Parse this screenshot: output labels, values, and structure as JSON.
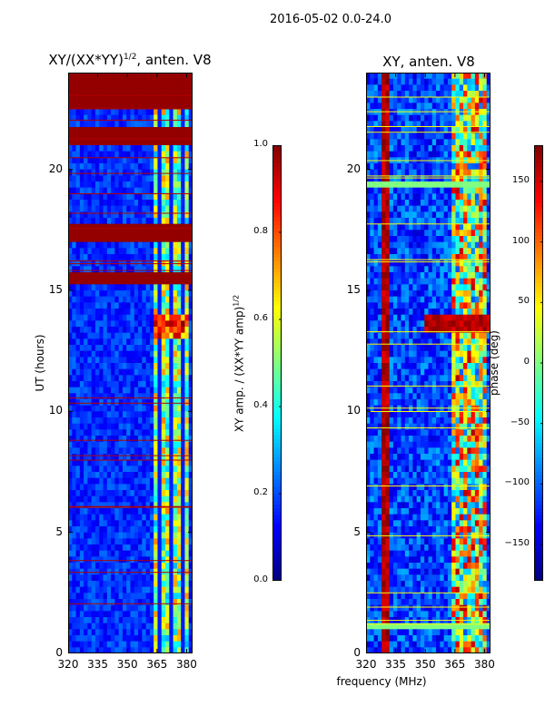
{
  "figure": {
    "suptitle": "2016-05-02 0.0-24.0"
  },
  "chart_data": [
    {
      "type": "heatmap",
      "title_main": "XY/(XX*YY)",
      "title_sup": "1/2",
      "title_rest": ", anten. V8",
      "xlabel": "",
      "ylabel": "UT (hours)",
      "xlim": [
        320,
        383
      ],
      "ylim": [
        0,
        24
      ],
      "xticks": [
        320,
        335,
        350,
        365,
        380
      ],
      "yticks": [
        0,
        5,
        10,
        15,
        20
      ],
      "colorbar": {
        "label_main": "XY amp. / (XX*YY amp)",
        "label_sup": "1/2",
        "range": [
          0.0,
          1.0
        ],
        "ticks": [
          "0.0",
          "0.2",
          "0.4",
          "0.6",
          "0.8",
          "1.0"
        ]
      },
      "saturated_hour_bands": [
        [
          0.0,
          0.05
        ],
        [
          22.6,
          24.0
        ],
        [
          21.1,
          21.7
        ],
        [
          17.1,
          17.8
        ],
        [
          15.2,
          15.7
        ],
        [
          5.9,
          6.05
        ]
      ],
      "rfi_channel_range_mhz": [
        363,
        381
      ],
      "event_hours": [
        13.0,
        14.0
      ]
    },
    {
      "type": "heatmap",
      "title": "XY, anten. V8",
      "xlabel": "frequency (MHz)",
      "ylabel": "",
      "xlim": [
        320,
        383
      ],
      "ylim": [
        0,
        24
      ],
      "xticks": [
        320,
        335,
        350,
        365,
        380
      ],
      "yticks": [
        0,
        5,
        10,
        15,
        20
      ],
      "colorbar": {
        "label": "phase (deg)",
        "range": [
          -180,
          180
        ],
        "ticks": [
          "150",
          "100",
          "50",
          "0",
          "−50",
          "−100",
          "−150"
        ]
      },
      "saturated_hour_bands": [
        [
          0.9,
          1.2
        ],
        [
          19.3,
          19.6
        ]
      ],
      "rfi_channel_range_mhz": [
        363,
        381
      ],
      "event_hours": [
        13.2,
        14.0
      ]
    }
  ]
}
